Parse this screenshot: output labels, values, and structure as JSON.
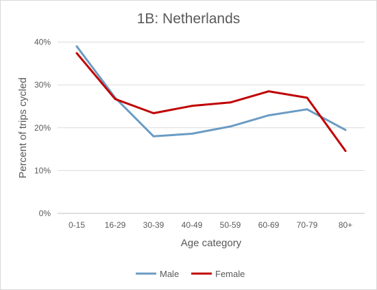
{
  "chart_data": {
    "type": "line",
    "title": "1B: Netherlands",
    "xlabel": "Age category",
    "ylabel": "Percent of trips cycled",
    "categories": [
      "0-15",
      "16-29",
      "30-39",
      "40-49",
      "50-59",
      "60-69",
      "70-79",
      "80+"
    ],
    "ylim": [
      0,
      40
    ],
    "yticks": [
      "0%",
      "10%",
      "20%",
      "30%",
      "40%"
    ],
    "ytick_values": [
      0,
      10,
      20,
      30,
      40
    ],
    "grid": true,
    "legend_position": "bottom",
    "series": [
      {
        "name": "Male",
        "color": "#6a9bc3",
        "values": [
          39.0,
          27.0,
          18.0,
          18.6,
          20.3,
          22.9,
          24.3,
          19.5
        ]
      },
      {
        "name": "Female",
        "color": "#c00000",
        "values": [
          37.4,
          26.7,
          23.4,
          25.1,
          25.9,
          28.5,
          27.0,
          14.6
        ]
      }
    ]
  }
}
